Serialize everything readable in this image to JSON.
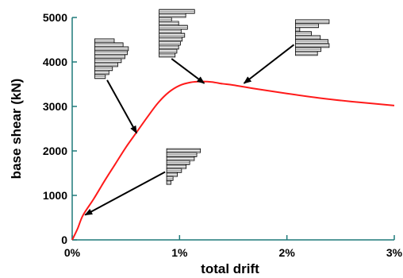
{
  "chart_data": {
    "type": "line",
    "xlabel": "total drift",
    "ylabel": "base shear (kN)",
    "x_unit": "%",
    "xlim": [
      0,
      3
    ],
    "ylim": [
      0,
      5000
    ],
    "x_ticks": [
      "0%",
      "1%",
      "2%",
      "3%"
    ],
    "y_ticks": [
      "0",
      "1000",
      "2000",
      "3000",
      "4000",
      "5000"
    ],
    "grid": false,
    "legend": "none",
    "series": [
      {
        "color": "#ff1a1a",
        "x": [
          0,
          0.05,
          0.1,
          0.2,
          0.3,
          0.4,
          0.5,
          0.6,
          0.7,
          0.8,
          0.9,
          1.0,
          1.1,
          1.2,
          1.3,
          1.4,
          1.5,
          1.7,
          2.0,
          2.3,
          2.6,
          3.0
        ],
        "y": [
          0,
          250,
          550,
          920,
          1320,
          1700,
          2080,
          2420,
          2760,
          3080,
          3320,
          3470,
          3540,
          3560,
          3550,
          3510,
          3480,
          3400,
          3290,
          3190,
          3110,
          3020
        ]
      }
    ],
    "annotations": [
      {
        "name": "profile-initial",
        "points_to": [
          0.12,
          560
        ],
        "bars": [
          0.95,
          0.85,
          0.78,
          0.65,
          0.55,
          0.42,
          0.3,
          0.18,
          0.12
        ],
        "box": [
          0.88,
          2050
        ],
        "box_w": 0.33
      },
      {
        "name": "profile-mid",
        "points_to": [
          0.6,
          2400
        ],
        "bars": [
          0.55,
          0.8,
          0.95,
          0.92,
          0.85,
          0.75,
          0.65,
          0.5,
          0.4,
          0.3
        ],
        "box": [
          0.21,
          4520
        ],
        "box_w": 0.33
      },
      {
        "name": "profile-peak",
        "points_to": [
          1.23,
          3520
        ],
        "bars": [
          1.0,
          0.75,
          0.35,
          0.55,
          0.8,
          0.62,
          0.72,
          0.65,
          0.6,
          0.55,
          0.5,
          0.45
        ],
        "box": [
          0.81,
          5180
        ],
        "box_w": 0.33
      },
      {
        "name": "profile-post-peak",
        "points_to": [
          1.6,
          3520
        ],
        "bars": [
          0.95,
          0.65,
          0.12,
          0.45,
          0.7,
          0.92,
          0.95,
          0.72,
          0.62
        ],
        "box": [
          2.08,
          4950
        ],
        "box_w": 0.33
      }
    ]
  }
}
